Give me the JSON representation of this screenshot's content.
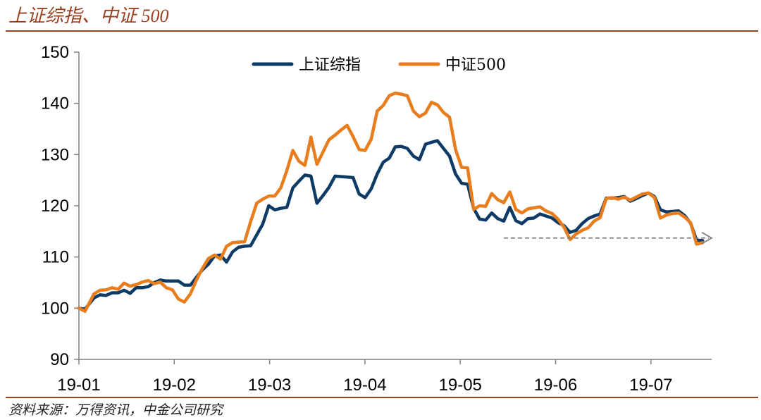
{
  "header": {
    "title": "上证综指、中证 500"
  },
  "footer": {
    "source": "资料来源：万得资讯，中金公司研究"
  },
  "colors": {
    "title": "#9c3f1e",
    "sse": "#0d3b66",
    "csi500": "#e87d1e",
    "guide": "#808080"
  },
  "chart_data": {
    "type": "line",
    "title": "",
    "xlabel": "",
    "ylabel": "",
    "ylim": [
      90,
      150
    ],
    "yticks": [
      90,
      100,
      110,
      120,
      130,
      140,
      150
    ],
    "xticks": [
      "19-01",
      "19-02",
      "19-03",
      "19-04",
      "19-05",
      "19-06",
      "19-07"
    ],
    "x_note": "x is days since 2019-01-02; month ticks at 19-01..19-07",
    "legend_position": "top-center",
    "grid": false,
    "annotation": {
      "type": "dashed-arrow",
      "from_x": 141,
      "to_x": 210,
      "y": 113.7
    },
    "series": [
      {
        "name": "上证综指",
        "x": [
          0,
          2,
          5,
          7,
          9,
          11,
          13,
          15,
          17,
          19,
          21,
          23,
          25,
          27,
          29,
          31,
          33,
          35,
          37,
          39,
          41,
          43,
          45,
          47,
          49,
          51,
          53,
          55,
          57,
          59,
          61,
          63,
          65,
          67,
          69,
          71,
          73,
          75,
          77,
          79,
          81,
          83,
          85,
          87,
          89,
          91,
          93,
          95,
          97,
          99,
          101,
          103,
          105,
          107,
          109,
          111,
          113,
          115,
          117,
          119,
          121,
          123,
          125,
          127,
          129,
          131,
          133,
          135,
          137,
          139,
          141,
          143,
          145,
          147,
          149,
          151,
          153,
          155,
          157,
          159,
          161,
          163,
          165,
          167,
          169,
          171,
          173,
          175,
          177,
          179,
          181,
          183,
          185,
          187,
          189,
          191,
          193,
          195,
          197,
          199,
          201,
          203,
          205,
          207
        ],
        "values": [
          100,
          99.8,
          102,
          102.6,
          102.5,
          103,
          103,
          103.5,
          102.9,
          104,
          104,
          104.2,
          105,
          105.5,
          105.3,
          105.3,
          105.3,
          104.5,
          104.5,
          106,
          107.5,
          108.6,
          110.2,
          110.4,
          109,
          111,
          111.9,
          112.1,
          112.2,
          114.3,
          116.4,
          120,
          119.2,
          119.5,
          119.7,
          123.5,
          124.8,
          126,
          125.8,
          120.5,
          122,
          123.6,
          125.8,
          125.7,
          125.6,
          125.5,
          122.3,
          121.6,
          123.3,
          126.2,
          128.5,
          129.3,
          131.5,
          131.6,
          131.2,
          129.7,
          129,
          132,
          132.4,
          132.7,
          131.2,
          129.7,
          126.2,
          124.4,
          124.2,
          119.5,
          117.4,
          117.2,
          118.6,
          117.5,
          117,
          119.7,
          117.1,
          116.5,
          117.5,
          117.6,
          118.4,
          118,
          117.6,
          116.7,
          116.1,
          114.8,
          115.2,
          116.5,
          117.5,
          118,
          118.4,
          121.5,
          121.5,
          121.6,
          121.8,
          120.9,
          121.4,
          122,
          122.5,
          121.8,
          119.2,
          118.8,
          118.9,
          119,
          118.1,
          116.6,
          113.3,
          113.2
        ],
        "color": "#0d3b66"
      },
      {
        "name": "中证500",
        "x": [
          0,
          2,
          5,
          7,
          9,
          11,
          13,
          15,
          17,
          19,
          21,
          23,
          25,
          27,
          29,
          31,
          33,
          35,
          37,
          39,
          41,
          43,
          45,
          47,
          49,
          51,
          53,
          55,
          57,
          59,
          61,
          63,
          65,
          67,
          69,
          71,
          73,
          75,
          77,
          79,
          81,
          83,
          85,
          87,
          89,
          91,
          93,
          95,
          97,
          99,
          101,
          103,
          105,
          107,
          109,
          111,
          113,
          115,
          117,
          119,
          121,
          123,
          125,
          127,
          129,
          131,
          133,
          135,
          137,
          139,
          141,
          143,
          145,
          147,
          149,
          151,
          153,
          155,
          157,
          159,
          161,
          163,
          165,
          167,
          169,
          171,
          173,
          175,
          177,
          179,
          181,
          183,
          185,
          187,
          189,
          191,
          193,
          195,
          197,
          199,
          201,
          203,
          205,
          207
        ],
        "values": [
          100,
          99.4,
          102.8,
          103.5,
          103.6,
          104,
          103.7,
          104.9,
          104.3,
          104.6,
          105.1,
          105.4,
          104.8,
          105.1,
          104,
          103.6,
          101.8,
          101.2,
          102.8,
          105.5,
          107.8,
          109.7,
          110.4,
          109.6,
          112.1,
          112.8,
          112.9,
          113,
          116.9,
          120.5,
          121.3,
          121.9,
          121.9,
          123.5,
          126.9,
          130.8,
          128.7,
          127.9,
          133.4,
          128.1,
          130.5,
          132.9,
          133.8,
          134.8,
          135.7,
          133.5,
          131,
          130.8,
          133,
          138.5,
          139.6,
          141.5,
          142,
          141.8,
          141.5,
          138.5,
          137.4,
          138.1,
          140.2,
          139.7,
          138.2,
          137.3,
          131,
          127.5,
          127.4,
          119.3,
          120,
          119.9,
          122.4,
          121.2,
          120.6,
          122.7,
          119.3,
          118.6,
          119.4,
          119.6,
          119.8,
          119,
          118.5,
          117.4,
          115.8,
          113.4,
          114.5,
          115.2,
          115.7,
          117,
          117.7,
          121.4,
          121.6,
          121.3,
          121.7,
          121.1,
          121.7,
          122.3,
          122.5,
          121.6,
          117.6,
          118.2,
          118.5,
          118.6,
          117.8,
          116.7,
          112.5,
          112.8
        ],
        "color": "#e87d1e"
      }
    ]
  }
}
